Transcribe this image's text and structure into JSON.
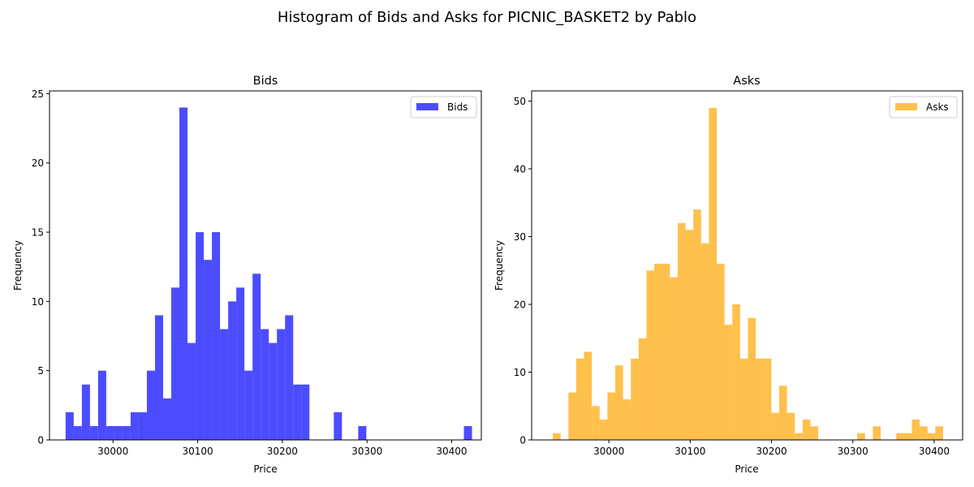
{
  "suptitle": "Histogram of Bids and Asks for PICNIC_BASKET2 by Pablo",
  "chart_data": [
    {
      "type": "bar",
      "title": "Bids",
      "xlabel": "Price",
      "ylabel": "Frequency",
      "legend": "Bids",
      "legend_position": "upper right",
      "color": "#0000ff",
      "alpha": 0.7,
      "xlim": [
        29925,
        30435
      ],
      "ylim": [
        0,
        25.2
      ],
      "xticks": [
        30000,
        30100,
        30200,
        30300,
        30400
      ],
      "yticks": [
        0,
        5,
        10,
        15,
        20,
        25
      ],
      "bin_start": 29944,
      "bin_width": 9.6,
      "values": [
        2,
        1,
        4,
        1,
        5,
        1,
        1,
        1,
        2,
        2,
        5,
        9,
        3,
        11,
        24,
        7,
        15,
        13,
        15,
        8,
        10,
        11,
        5,
        12,
        8,
        7,
        8,
        9,
        4,
        4,
        0,
        0,
        0,
        2,
        0,
        0,
        1,
        0,
        0,
        0,
        0,
        0,
        0,
        0,
        0,
        0,
        0,
        0,
        0,
        1
      ]
    },
    {
      "type": "bar",
      "title": "Asks",
      "xlabel": "Price",
      "ylabel": "Frequency",
      "legend": "Asks",
      "legend_position": "upper right",
      "color": "#ffa500",
      "alpha": 0.7,
      "xlim": [
        29905,
        30435
      ],
      "ylim": [
        0,
        51.5
      ],
      "xticks": [
        30000,
        30100,
        30200,
        30300,
        30400
      ],
      "yticks": [
        0,
        10,
        20,
        30,
        40,
        50
      ],
      "bin_start": 29931,
      "bin_width": 9.6,
      "values": [
        1,
        0,
        7,
        12,
        13,
        5,
        3,
        7,
        11,
        6,
        12,
        15,
        25,
        26,
        26,
        24,
        32,
        31,
        34,
        29,
        49,
        26,
        17,
        20,
        12,
        18,
        12,
        12,
        4,
        8,
        4,
        1,
        3,
        2,
        0,
        0,
        0,
        0,
        0,
        1,
        0,
        2,
        0,
        0,
        1,
        1,
        3,
        2,
        1,
        2
      ]
    }
  ]
}
